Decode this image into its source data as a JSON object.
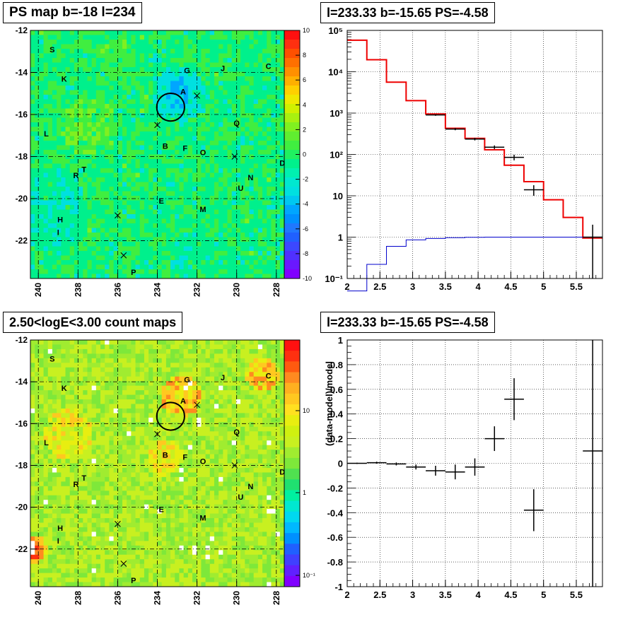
{
  "colors": {
    "frame": "#000000",
    "model_line": "#ee0000",
    "ps_line": "#0000cc",
    "data_marker": "#000000"
  },
  "panels": {
    "ps_map": {
      "title": "PS map b=-18 l=234",
      "colorbar": {
        "ticks": [
          "10",
          "8",
          "6",
          "4",
          "2",
          "0",
          "-2",
          "-4",
          "-6",
          "-8",
          "-10"
        ]
      }
    },
    "spectrum": {
      "title": "l=233.33 b=-15.65 PS=-4.58"
    },
    "count_map": {
      "title": "2.50<logE<3.00 count maps",
      "colorbar": {
        "ticks": [
          "10",
          "1",
          "10⁻¹"
        ]
      }
    },
    "residual": {
      "title": "l=233.33 b=-15.65 PS=-4.58"
    }
  },
  "sky_maps": {
    "x_ticks": [
      "240",
      "238",
      "236",
      "234",
      "232",
      "230",
      "228"
    ],
    "y_ticks": [
      "-12",
      "-14",
      "-16",
      "-18",
      "-20",
      "-22"
    ],
    "l_range": [
      240.4,
      227.6
    ],
    "b_range": [
      -12,
      -23.8
    ],
    "source_labels": [
      {
        "name": "S",
        "l": 239.3,
        "b": -12.9
      },
      {
        "name": "K",
        "l": 238.7,
        "b": -14.3
      },
      {
        "name": "G",
        "l": 232.5,
        "b": -13.9
      },
      {
        "name": "J",
        "l": 230.7,
        "b": -13.8
      },
      {
        "name": "C",
        "l": 228.4,
        "b": -13.7
      },
      {
        "name": "A",
        "l": 232.7,
        "b": -14.9
      },
      {
        "name": "Q",
        "l": 230.0,
        "b": -16.4
      },
      {
        "name": "L",
        "l": 239.6,
        "b": -16.9
      },
      {
        "name": "B",
        "l": 233.6,
        "b": -17.5
      },
      {
        "name": "F",
        "l": 232.6,
        "b": -17.6
      },
      {
        "name": "O",
        "l": 231.7,
        "b": -17.8
      },
      {
        "name": "D",
        "l": 227.7,
        "b": -18.3
      },
      {
        "name": "T",
        "l": 237.7,
        "b": -18.6
      },
      {
        "name": "R",
        "l": 238.1,
        "b": -18.9
      },
      {
        "name": "N",
        "l": 229.3,
        "b": -19.0
      },
      {
        "name": "U",
        "l": 229.8,
        "b": -19.5
      },
      {
        "name": "E",
        "l": 233.8,
        "b": -20.1
      },
      {
        "name": "M",
        "l": 231.7,
        "b": -20.5
      },
      {
        "name": "H",
        "l": 238.9,
        "b": -21.0
      },
      {
        "name": "I",
        "l": 239.0,
        "b": -21.6
      },
      {
        "name": "P",
        "l": 235.2,
        "b": -23.5
      }
    ],
    "crosses": [
      {
        "l": 232.0,
        "b": -15.1
      },
      {
        "l": 234.0,
        "b": -16.5
      },
      {
        "l": 230.1,
        "b": -18.0
      },
      {
        "l": 236.0,
        "b": -20.8
      },
      {
        "l": 235.7,
        "b": -22.7
      }
    ],
    "circle": {
      "l": 233.33,
      "b": -15.65,
      "r": 0.7
    }
  },
  "chart_data": [
    {
      "type": "heatmap",
      "panel": "ps_map",
      "title": "PS map b=-18 l=234",
      "xlabel": "",
      "ylabel": "",
      "xlim": [
        240.4,
        227.6
      ],
      "ylim": [
        -23.8,
        -12
      ],
      "zlim": [
        -10,
        10
      ],
      "x_ticks": [
        "240",
        "238",
        "236",
        "234",
        "232",
        "230",
        "228"
      ],
      "y_ticks": [
        "-12",
        "-14",
        "-16",
        "-18",
        "-20",
        "-22"
      ],
      "grid": true,
      "colorbar": "right"
    },
    {
      "type": "line",
      "panel": "spectrum",
      "title": "l=233.33 b=-15.65 PS=-4.58",
      "xlabel": "",
      "ylabel": "",
      "xlim": [
        2,
        5.9
      ],
      "ylim": [
        0.1,
        100000
      ],
      "yscale": "log",
      "x_ticks": [
        "2",
        "2.5",
        "3",
        "3.5",
        "4",
        "4.5",
        "5",
        "5.5"
      ],
      "y_ticks": [
        "10⁻¹",
        "1",
        "10",
        "10²",
        "10³",
        "10⁴",
        "10⁵"
      ],
      "grid": true,
      "series": [
        {
          "kind": "step",
          "color": "#ee0000",
          "bins": [
            2.0,
            2.3,
            2.6,
            2.9,
            3.2,
            3.5,
            3.8,
            4.1,
            4.4,
            4.7,
            5.0,
            5.3,
            5.6,
            5.9
          ],
          "values": [
            58000,
            19500,
            5600,
            2000,
            950,
            430,
            245,
            130,
            55,
            22,
            8,
            3,
            0.95
          ]
        },
        {
          "kind": "step",
          "color": "#0000cc",
          "bins": [
            2.0,
            2.3,
            2.6,
            2.9,
            3.2,
            3.5,
            3.8,
            4.1,
            4.4,
            4.7,
            5.0,
            5.3,
            5.6,
            5.9
          ],
          "values": [
            0.05,
            0.22,
            0.6,
            0.86,
            0.93,
            0.97,
            0.99,
            1.0,
            1.0,
            1.0,
            1.0,
            1.0,
            1.0
          ]
        },
        {
          "kind": "errorbar",
          "color": "#000000",
          "points": [
            {
              "x": 3.35,
              "xerr": 0.15,
              "y": 900,
              "ylo": 860,
              "yhi": 940
            },
            {
              "x": 3.65,
              "xerr": 0.15,
              "y": 410,
              "ylo": 385,
              "yhi": 435
            },
            {
              "x": 3.95,
              "xerr": 0.15,
              "y": 235,
              "ylo": 218,
              "yhi": 252
            },
            {
              "x": 4.25,
              "xerr": 0.15,
              "y": 150,
              "ylo": 135,
              "yhi": 165
            },
            {
              "x": 4.55,
              "xerr": 0.15,
              "y": 85,
              "ylo": 72,
              "yhi": 98
            },
            {
              "x": 4.85,
              "xerr": 0.15,
              "y": 14,
              "ylo": 10,
              "yhi": 18
            },
            {
              "x": 5.75,
              "xerr": 0.15,
              "y": 1.0,
              "ylo": 0.1,
              "yhi": 2.0
            }
          ]
        }
      ]
    },
    {
      "type": "heatmap",
      "panel": "count_map",
      "title": "2.50<logE<3.00 count maps",
      "xlabel": "",
      "ylabel": "",
      "xlim": [
        240.4,
        227.6
      ],
      "ylim": [
        -23.8,
        -12
      ],
      "zscale": "log",
      "x_ticks": [
        "240",
        "238",
        "236",
        "234",
        "232",
        "230",
        "228"
      ],
      "y_ticks": [
        "-12",
        "-14",
        "-16",
        "-18",
        "-20",
        "-22"
      ],
      "grid": true,
      "colorbar": "right"
    },
    {
      "type": "scatter",
      "panel": "residual",
      "title": "l=233.33 b=-15.65 PS=-4.58",
      "xlabel": "",
      "ylabel": "(data-model)/model",
      "xlim": [
        2,
        5.9
      ],
      "ylim": [
        -1,
        1
      ],
      "x_ticks": [
        "2",
        "2.5",
        "3",
        "3.5",
        "4",
        "4.5",
        "5",
        "5.5"
      ],
      "y_ticks": [
        "1",
        "0.8",
        "0.6",
        "0.4",
        "0.2",
        "0",
        "-0.2",
        "-0.4",
        "-0.6",
        "-0.8",
        "-1"
      ],
      "grid": true,
      "points": [
        {
          "x": 2.15,
          "xerr": 0.15,
          "y": 0.0,
          "yerr": 0.005
        },
        {
          "x": 2.45,
          "xerr": 0.15,
          "y": 0.005,
          "yerr": 0.008
        },
        {
          "x": 2.75,
          "xerr": 0.15,
          "y": -0.005,
          "yerr": 0.012
        },
        {
          "x": 3.05,
          "xerr": 0.15,
          "y": -0.03,
          "yerr": 0.02
        },
        {
          "x": 3.35,
          "xerr": 0.15,
          "y": -0.06,
          "yerr": 0.04
        },
        {
          "x": 3.65,
          "xerr": 0.15,
          "y": -0.07,
          "yerr": 0.06
        },
        {
          "x": 3.95,
          "xerr": 0.15,
          "y": -0.03,
          "yerr": 0.07
        },
        {
          "x": 4.25,
          "xerr": 0.15,
          "y": 0.2,
          "yerr": 0.1
        },
        {
          "x": 4.55,
          "xerr": 0.15,
          "y": 0.52,
          "yerr": 0.17
        },
        {
          "x": 4.85,
          "xerr": 0.15,
          "y": -0.38,
          "yerr": 0.17
        },
        {
          "x": 5.75,
          "xerr": 0.15,
          "y": 0.1,
          "yerr": 1.3
        }
      ]
    }
  ]
}
